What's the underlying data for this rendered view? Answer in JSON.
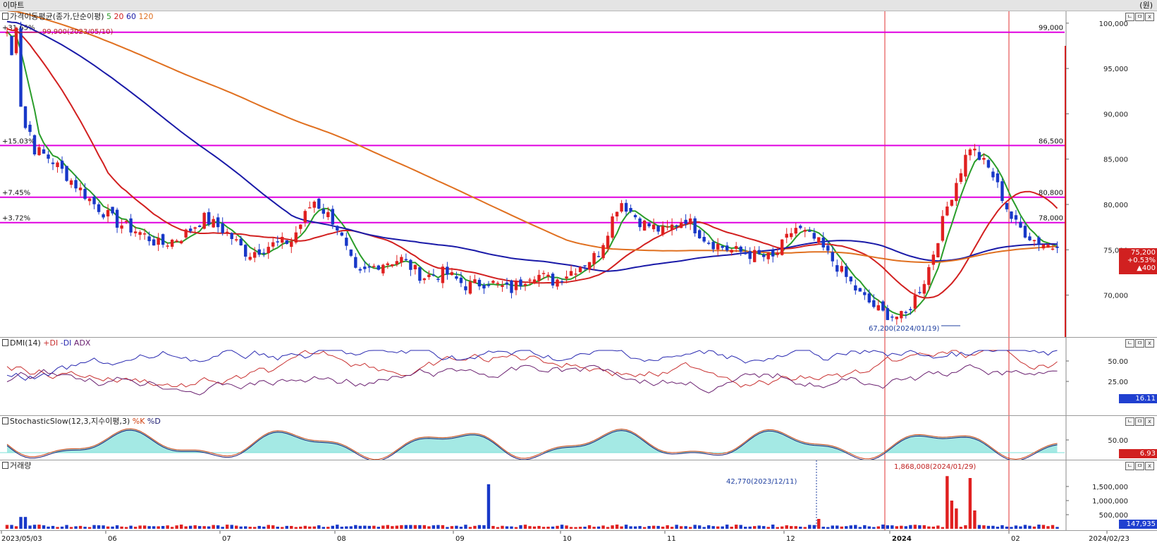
{
  "window": {
    "title": "이마트",
    "unit": "(원)"
  },
  "controls": [
    "ㄴ",
    "ㅁ",
    "x"
  ],
  "price_pane": {
    "label": "가격이동평균(종가,단순이평)",
    "periods": [
      "5",
      "20",
      "60",
      "120"
    ],
    "period_colors": [
      "#2a9d2a",
      "#d22020",
      "#1a1aa8",
      "#e07020"
    ],
    "hlines": [
      {
        "value": 99000,
        "pct": "+31.65%",
        "text": "99,000"
      },
      {
        "value": 86500,
        "pct": "+15.03%",
        "text": "86,500"
      },
      {
        "value": 80800,
        "pct": "+7.45%",
        "text": "80,800"
      },
      {
        "value": 78000,
        "pct": "+3.72%",
        "text": "78,000"
      }
    ],
    "hline_color": "#e000e0",
    "max_note": "99,900(2023/05/10)",
    "min_note": "67,200(2024/01/19)",
    "yticks": [
      "100,000",
      "95,000",
      "90,000",
      "85,000",
      "80,000",
      "75,000",
      "70,000"
    ],
    "last_price": "75,200",
    "last_change_pct": "+0.53%",
    "last_change": "▲400"
  },
  "dmi_pane": {
    "label": "DMI(14)",
    "series": [
      "+DI",
      "-DI",
      "ADX"
    ],
    "series_colors": [
      "#c83030",
      "#2828b0",
      "#6a2070"
    ],
    "yticks": [
      "50.00",
      "25.00"
    ],
    "last": "16.11"
  },
  "stoch_pane": {
    "label": "StochasticSlow(12,3,지수이평,3)",
    "series": [
      "%K",
      "%D"
    ],
    "series_colors": [
      "#d04010",
      "#1a1a70"
    ],
    "yticks": [
      "50.00"
    ],
    "last": "6.93"
  },
  "volume_pane": {
    "label": "거래량",
    "max_note": "1,868,008(2024/01/29)",
    "note2": "42,770(2023/12/11)",
    "yticks": [
      "1,500,000",
      "1,000,000",
      "500,000"
    ],
    "last": "147,935"
  },
  "xaxis": {
    "labels": [
      "2023/05/03",
      "06",
      "07",
      "08",
      "09",
      "10",
      "11",
      "12",
      "2024",
      "02",
      "2024/02/23"
    ]
  },
  "chart_data": {
    "type": "candlestick",
    "dates_range": [
      "2023/05/03",
      "2024/02/23"
    ],
    "close_path": [
      99000,
      86500,
      85000,
      82500,
      80000,
      78000,
      77000,
      75500,
      76500,
      78500,
      77000,
      74500,
      75500,
      76000,
      80500,
      78000,
      72000,
      73500,
      74000,
      72000,
      72500,
      71000,
      71500,
      70500,
      72500,
      71500,
      73000,
      74500,
      80500,
      78000,
      77000,
      78500,
      76000,
      75000,
      74500,
      74000,
      77500,
      76000,
      73000,
      70000,
      68000,
      67500,
      72000,
      80000,
      86500,
      83500,
      78000,
      76000,
      75200
    ],
    "volume_path": [
      420000,
      95000,
      75000,
      70000,
      90000,
      1580000,
      65000,
      60000,
      90000,
      110000,
      100000,
      85000,
      70000,
      60000,
      80000,
      95000,
      110000,
      95000,
      200000,
      1868008,
      1000000,
      700000,
      200000,
      147935
    ],
    "ma_periods": [
      5,
      20,
      60,
      120
    ],
    "ylim": [
      66000,
      101000
    ]
  }
}
